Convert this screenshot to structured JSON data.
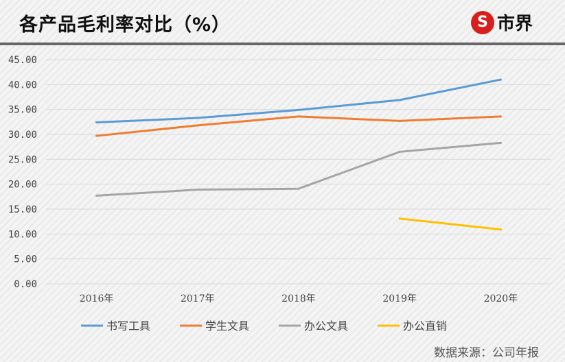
{
  "header": {
    "title": "各产品毛利率对比（%）",
    "logo_text": "市界",
    "logo_mark": "S",
    "accent_color": "#d7201b"
  },
  "source": "数据来源：公司年报",
  "chart_data": {
    "type": "line",
    "title": "各产品毛利率对比（%）",
    "categories": [
      "2016年",
      "2017年",
      "2018年",
      "2019年",
      "2020年"
    ],
    "ylim": [
      0,
      45
    ],
    "yticks": [
      "0.00",
      "5.00",
      "10.00",
      "15.00",
      "20.00",
      "25.00",
      "30.00",
      "35.00",
      "40.00",
      "45.00"
    ],
    "grid": true,
    "legend": "bottom",
    "series": [
      {
        "name": "书写工具",
        "color": "#5b9bd5",
        "values": [
          32.4,
          33.3,
          34.9,
          36.9,
          41.0
        ]
      },
      {
        "name": "学生文具",
        "color": "#ed7d31",
        "values": [
          29.7,
          31.8,
          33.6,
          32.7,
          33.6
        ]
      },
      {
        "name": "办公文具",
        "color": "#a5a5a5",
        "values": [
          17.7,
          18.9,
          19.1,
          26.5,
          28.3
        ]
      },
      {
        "name": "办公直销",
        "color": "#ffc000",
        "values": [
          null,
          null,
          null,
          13.1,
          10.9
        ]
      }
    ]
  }
}
